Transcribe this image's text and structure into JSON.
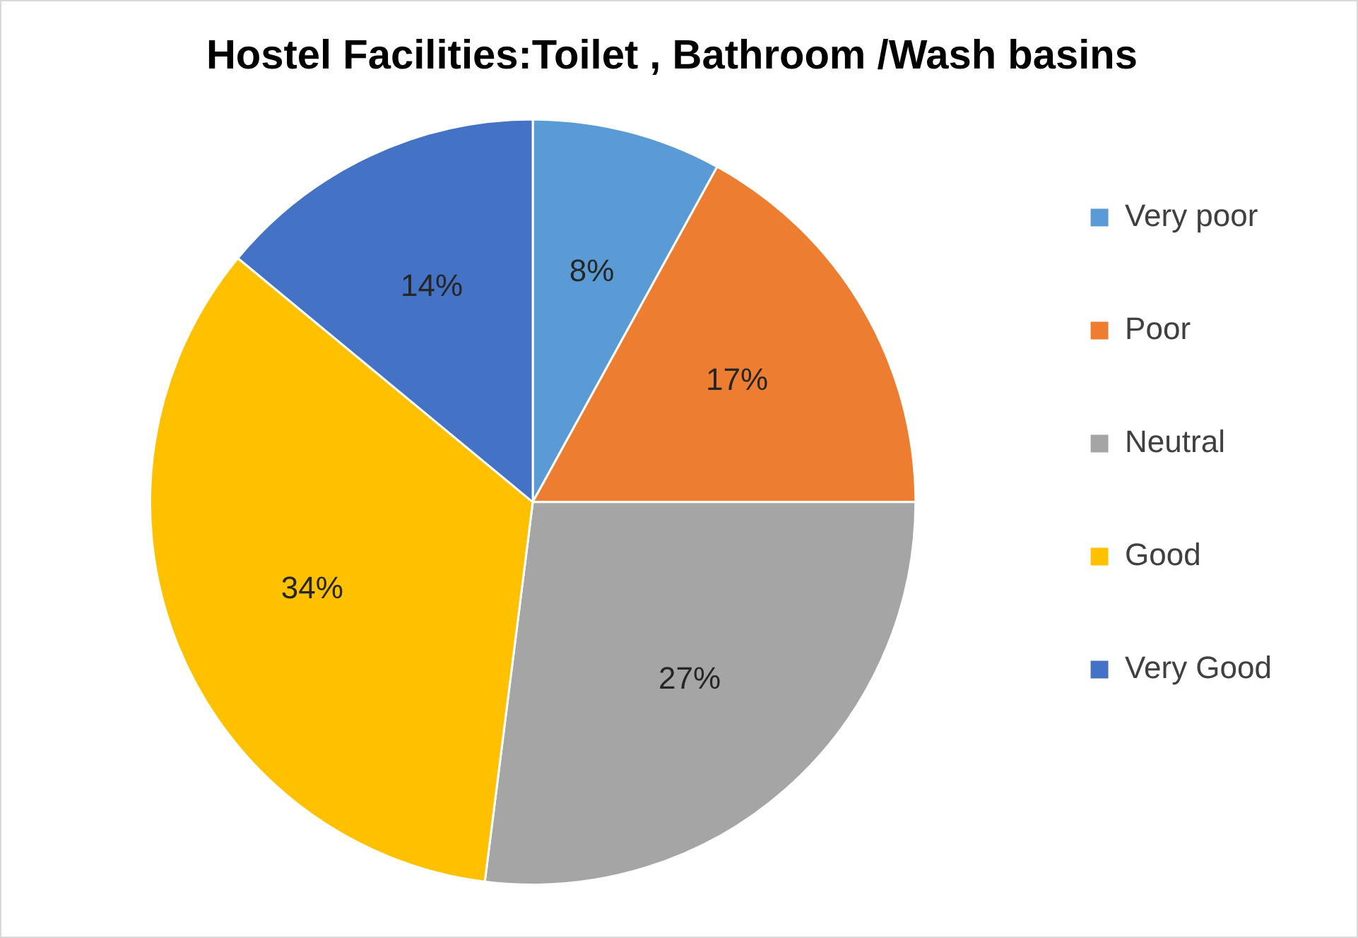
{
  "chart_data": {
    "type": "pie",
    "title": "Hostel Facilities:Toilet , Bathroom /Wash basins",
    "categories": [
      "Very poor",
      "Poor",
      "Neutral",
      "Good",
      "Very Good"
    ],
    "values": [
      8,
      17,
      27,
      34,
      14
    ],
    "value_labels": [
      "8%",
      "17%",
      "27%",
      "34%",
      "14%"
    ],
    "colors": [
      "#5b9bd5",
      "#ed7d31",
      "#a5a5a5",
      "#ffc000",
      "#4472c4"
    ],
    "legend": "right"
  }
}
